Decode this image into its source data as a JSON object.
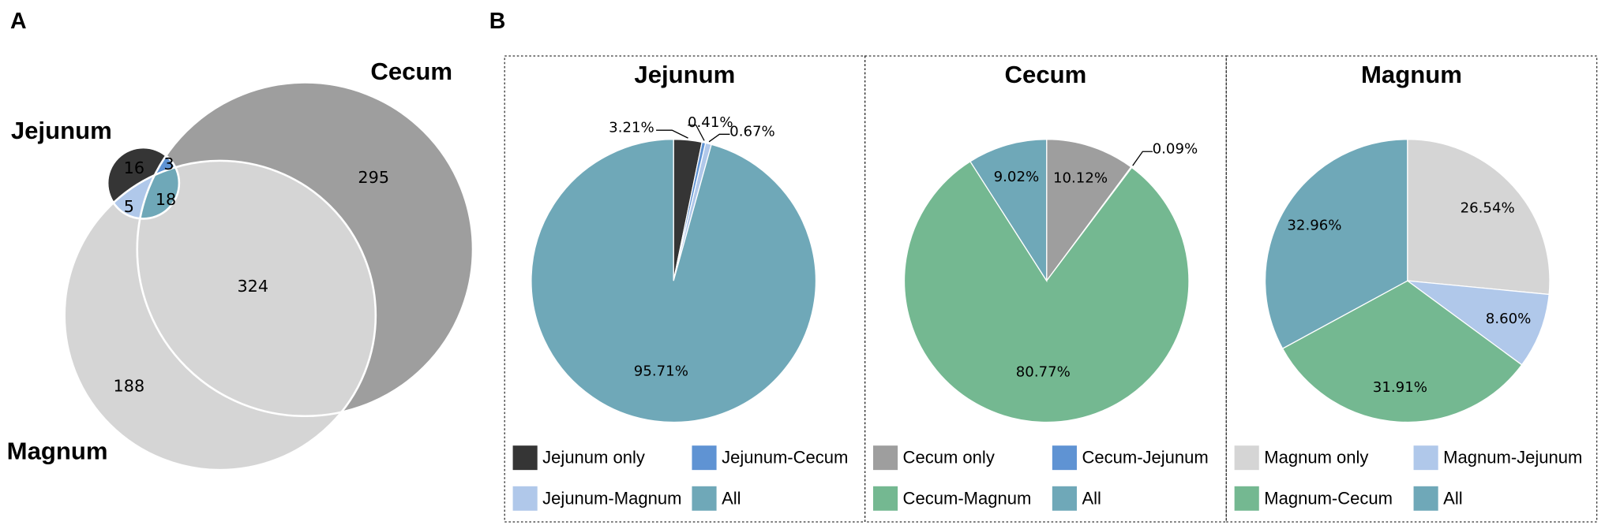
{
  "panel_labels": [
    "A",
    "B"
  ],
  "chart_data": [
    {
      "type": "venn",
      "sets": [
        "Jejunum",
        "Cecum",
        "Magnum"
      ],
      "regions": [
        {
          "sets": [
            "Jejunum"
          ],
          "value": 16,
          "color": "#353535"
        },
        {
          "sets": [
            "Jejunum",
            "Cecum"
          ],
          "value": 3,
          "color": "#5f93d3"
        },
        {
          "sets": [
            "Jejunum",
            "Magnum"
          ],
          "value": 5,
          "color": "#b0c8ea"
        },
        {
          "sets": [
            "Jejunum",
            "Cecum",
            "Magnum"
          ],
          "value": 18,
          "color": "#6fa8b8"
        },
        {
          "sets": [
            "Cecum"
          ],
          "value": 295,
          "color": "#9e9e9e"
        },
        {
          "sets": [
            "Cecum",
            "Magnum"
          ],
          "value": 324,
          "color": "#74b891"
        },
        {
          "sets": [
            "Magnum"
          ],
          "value": 188,
          "color": "#d5d5d5"
        }
      ]
    },
    {
      "type": "pie",
      "title": "Jejunum",
      "categories": [
        "Jejunum only",
        "Jejunum-Cecum",
        "Jejunum-Magnum",
        "All"
      ],
      "values": [
        3.21,
        0.41,
        0.67,
        95.71
      ],
      "value_labels": [
        "3.21%",
        "0.41%",
        "0.67%",
        "95.71%"
      ],
      "colors": [
        "#353535",
        "#5f93d3",
        "#b0c8ea",
        "#6fa8b8"
      ]
    },
    {
      "type": "pie",
      "title": "Cecum",
      "categories": [
        "Cecum only",
        "Cecum-Jejunum",
        "Cecum-Magnum",
        "All"
      ],
      "values": [
        10.12,
        0.09,
        80.77,
        9.02
      ],
      "value_labels": [
        "10.12%",
        "0.09%",
        "80.77%",
        "9.02%"
      ],
      "colors": [
        "#9e9e9e",
        "#5f93d3",
        "#74b891",
        "#6fa8b8"
      ]
    },
    {
      "type": "pie",
      "title": "Magnum",
      "categories": [
        "Magnum only",
        "Magnum-Jejunum",
        "Magnum-Cecum",
        "All"
      ],
      "values": [
        26.54,
        8.6,
        31.91,
        32.96
      ],
      "value_labels": [
        "26.54%",
        "8.60%",
        "31.91%",
        "32.96%"
      ],
      "colors": [
        "#d5d5d5",
        "#b0c8ea",
        "#74b891",
        "#6fa8b8"
      ]
    }
  ]
}
